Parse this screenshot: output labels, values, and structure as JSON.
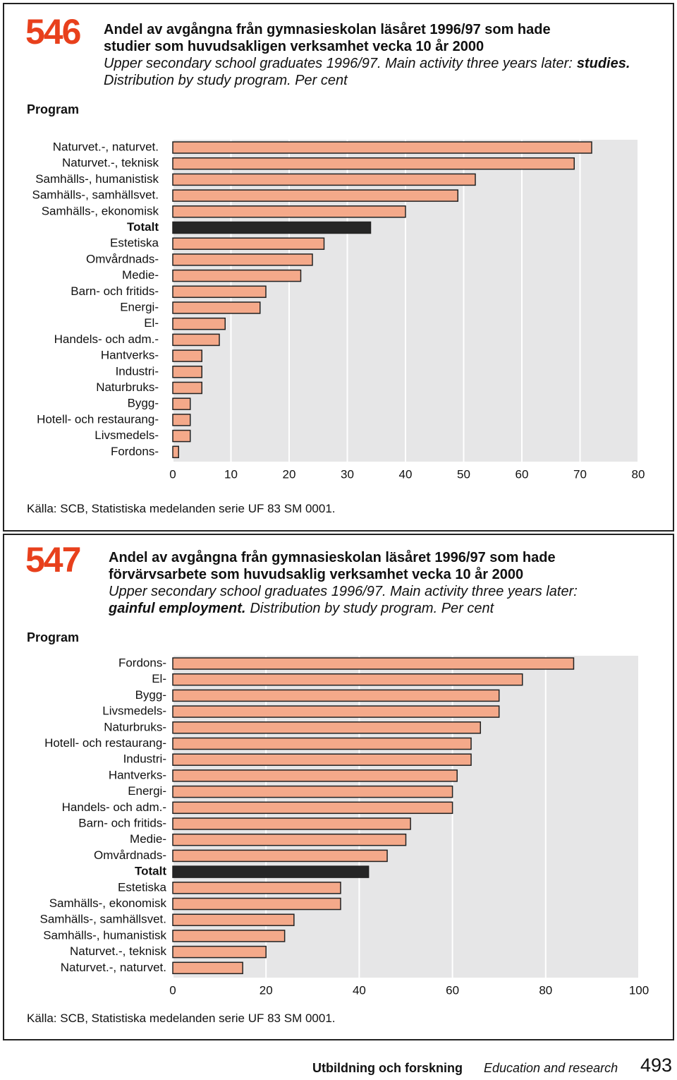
{
  "chart_data": [
    {
      "type": "bar",
      "orientation": "horizontal",
      "number": "546",
      "title": [
        "Andel av avgångna från gymnasieskolan läsåret 1996/97 som hade",
        "studier som huvudsakligen verksamhet vecka 10 år 2000"
      ],
      "subtitle": [
        "Upper secondary school graduates 1996/97. Main activity three years later:",
        "studies.",
        "Distribution by study program. Per cent"
      ],
      "axis_label": "Program",
      "categories": [
        "Naturvet.-, naturvet.",
        "Naturvet.-, teknisk",
        "Samhälls-, humanistisk",
        "Samhälls-, samhällsvet.",
        "Samhälls-, ekonomisk",
        "Totalt",
        "Estetiska",
        "Omvårdnads-",
        "Medie-",
        "Barn- och fritids-",
        "Energi-",
        "El-",
        "Handels- och adm.-",
        "Hantverks-",
        "Industri-",
        "Naturbruks-",
        "Bygg-",
        "Hotell- och restaurang-",
        "Livsmedels-",
        "Fordons-"
      ],
      "values": [
        72,
        69,
        52,
        49,
        40,
        34,
        26,
        24,
        22,
        16,
        15,
        9,
        8,
        5,
        5,
        5,
        3,
        3,
        3,
        1
      ],
      "color": "#f4a98a",
      "highlight": "Totalt",
      "highlight_color": "#262626",
      "xlim": [
        0,
        80
      ],
      "xticks": [
        0,
        10,
        20,
        30,
        40,
        50,
        60,
        70,
        80
      ],
      "grid": true,
      "source": "Källa: SCB, Statistiska medelanden serie UF 83 SM 0001."
    },
    {
      "type": "bar",
      "orientation": "horizontal",
      "number": "547",
      "title": [
        "Andel av avgångna från gymnasieskolan läsåret 1996/97 som hade",
        "förvärvsarbete som huvudsaklig verksamhet vecka 10 år 2000"
      ],
      "subtitle": [
        "Upper secondary school graduates 1996/97. Main activity three years later:",
        "gainful employment.",
        "Distribution by study program. Per cent"
      ],
      "axis_label": "Program",
      "categories": [
        "Fordons-",
        "El-",
        "Bygg-",
        "Livsmedels-",
        "Naturbruks-",
        "Hotell- och restaurang-",
        "Industri-",
        "Hantverks-",
        "Energi-",
        "Handels- och adm.-",
        "Barn- och fritids-",
        "Medie-",
        "Omvårdnads-",
        "Totalt",
        "Estetiska",
        "Samhälls-, ekonomisk",
        "Samhälls-, samhällsvet.",
        "Samhälls-, humanistisk",
        "Naturvet.-, teknisk",
        "Naturvet.-, naturvet."
      ],
      "values": [
        86,
        75,
        70,
        70,
        66,
        64,
        64,
        61,
        60,
        60,
        51,
        50,
        46,
        42,
        36,
        36,
        26,
        24,
        20,
        15
      ],
      "color": "#f4a98a",
      "highlight": "Totalt",
      "highlight_color": "#262626",
      "xlim": [
        0,
        100
      ],
      "xticks": [
        0,
        20,
        40,
        60,
        80,
        100
      ],
      "grid": true,
      "source": "Källa: SCB, Statistiska medelanden serie UF 83 SM 0001."
    }
  ],
  "footer": {
    "section": "Utbildning och forskning",
    "section_en": "Education and research",
    "page": "493"
  }
}
